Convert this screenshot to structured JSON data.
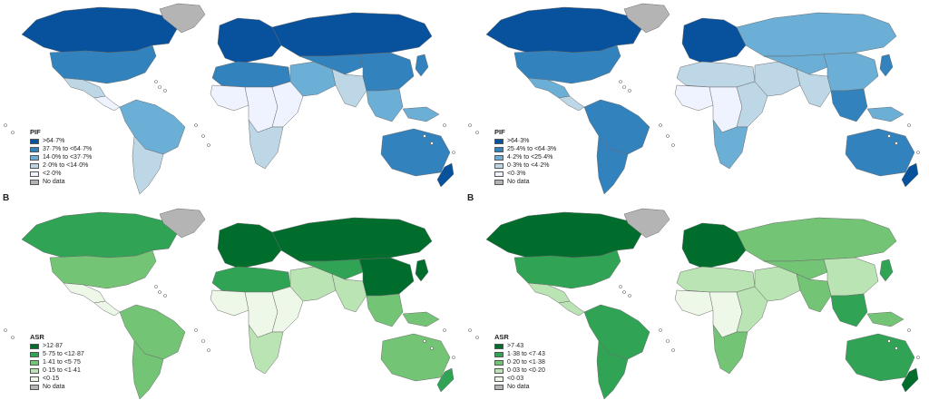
{
  "panels": [
    {
      "id": "pif-blue-left",
      "letter": "",
      "legend_title": "PIF",
      "legend": [
        {
          "label": ">64·7%",
          "color": "#08519c"
        },
        {
          "label": "37·7% to <64·7%",
          "color": "#3182bd"
        },
        {
          "label": "14·0% to <37·7%",
          "color": "#6baed6"
        },
        {
          "label": "2·0% to <14·0%",
          "color": "#bdd7e7"
        },
        {
          "label": "<2·0%",
          "color": "#eff3ff"
        },
        {
          "label": "No data",
          "color": "#b4b4b4"
        }
      ]
    },
    {
      "id": "pif-blue-right",
      "letter": "",
      "legend_title": "PIF",
      "legend": [
        {
          "label": ">64·3%",
          "color": "#08519c"
        },
        {
          "label": "25·4% to <64·3%",
          "color": "#3182bd"
        },
        {
          "label": "4·2% to <25·4%",
          "color": "#6baed6"
        },
        {
          "label": "0·3% to <4·2%",
          "color": "#bdd7e7"
        },
        {
          "label": "<0·3%",
          "color": "#eff3ff"
        },
        {
          "label": "No data",
          "color": "#b4b4b4"
        }
      ]
    },
    {
      "id": "asr-green-left",
      "letter": "B",
      "legend_title": "ASR",
      "legend": [
        {
          "label": ">12·87",
          "color": "#006d2c"
        },
        {
          "label": "5·75 to <12·87",
          "color": "#31a354"
        },
        {
          "label": "1·41 to <5·75",
          "color": "#74c476"
        },
        {
          "label": "0·15 to <1·41",
          "color": "#bae4b3"
        },
        {
          "label": "<0·15",
          "color": "#edf8e9"
        },
        {
          "label": "No data",
          "color": "#b4b4b4"
        }
      ]
    },
    {
      "id": "asr-green-right",
      "letter": "B",
      "legend_title": "ASR",
      "legend": [
        {
          "label": ">7·43",
          "color": "#006d2c"
        },
        {
          "label": "1·38 to <7·43",
          "color": "#31a354"
        },
        {
          "label": "0·20 to <1·38",
          "color": "#74c476"
        },
        {
          "label": "0·03 to <0·20",
          "color": "#bae4b3"
        },
        {
          "label": "<0·03",
          "color": "#edf8e9"
        },
        {
          "label": "No data",
          "color": "#b4b4b4"
        }
      ]
    }
  ],
  "region_colors": {
    "pif-blue-left": {
      "north_america": "#08519c",
      "greenland": "#b4b4b4",
      "usa": "#3182bd",
      "mexico": "#bdd7e7",
      "central_america": "#eff3ff",
      "south_america_north": "#6baed6",
      "south_america_south": "#bdd7e7",
      "europe": "#08519c",
      "russia": "#08519c",
      "north_africa": "#3182bd",
      "west_africa": "#eff3ff",
      "central_africa": "#eff3ff",
      "east_africa": "#eff3ff",
      "southern_africa": "#bdd7e7",
      "middle_east": "#6baed6",
      "central_asia": "#3182bd",
      "south_asia": "#bdd7e7",
      "china": "#3182bd",
      "southeast_asia": "#6baed6",
      "japan": "#3182bd",
      "australia": "#3182bd",
      "new_zealand": "#08519c",
      "islands": "#6baed6"
    },
    "pif-blue-right": {
      "north_america": "#08519c",
      "greenland": "#b4b4b4",
      "usa": "#3182bd",
      "mexico": "#6baed6",
      "central_america": "#bdd7e7",
      "south_america_north": "#3182bd",
      "south_america_south": "#3182bd",
      "europe": "#08519c",
      "russia": "#6baed6",
      "north_africa": "#bdd7e7",
      "west_africa": "#eff3ff",
      "central_africa": "#eff3ff",
      "east_africa": "#bdd7e7",
      "southern_africa": "#6baed6",
      "middle_east": "#bdd7e7",
      "central_asia": "#6baed6",
      "south_asia": "#bdd7e7",
      "china": "#6baed6",
      "southeast_asia": "#3182bd",
      "japan": "#3182bd",
      "australia": "#3182bd",
      "new_zealand": "#08519c",
      "islands": "#6baed6"
    },
    "asr-green-left": {
      "north_america": "#31a354",
      "greenland": "#b4b4b4",
      "usa": "#74c476",
      "mexico": "#edf8e9",
      "central_america": "#edf8e9",
      "south_america_north": "#74c476",
      "south_america_south": "#74c476",
      "europe": "#006d2c",
      "russia": "#006d2c",
      "north_africa": "#31a354",
      "west_africa": "#edf8e9",
      "central_africa": "#edf8e9",
      "east_africa": "#edf8e9",
      "southern_africa": "#bae4b3",
      "middle_east": "#bae4b3",
      "central_asia": "#31a354",
      "south_asia": "#bae4b3",
      "china": "#006d2c",
      "southeast_asia": "#74c476",
      "japan": "#006d2c",
      "australia": "#74c476",
      "new_zealand": "#31a354",
      "islands": "#74c476"
    },
    "asr-green-right": {
      "north_america": "#006d2c",
      "greenland": "#b4b4b4",
      "usa": "#31a354",
      "mexico": "#bae4b3",
      "central_america": "#bae4b3",
      "south_america_north": "#31a354",
      "south_america_south": "#31a354",
      "europe": "#006d2c",
      "russia": "#74c476",
      "north_africa": "#bae4b3",
      "west_africa": "#edf8e9",
      "central_africa": "#edf8e9",
      "east_africa": "#bae4b3",
      "southern_africa": "#74c476",
      "middle_east": "#bae4b3",
      "central_asia": "#74c476",
      "south_asia": "#74c476",
      "china": "#bae4b3",
      "southeast_asia": "#31a354",
      "japan": "#31a354",
      "australia": "#31a354",
      "new_zealand": "#006d2c",
      "islands": "#74c476"
    }
  }
}
